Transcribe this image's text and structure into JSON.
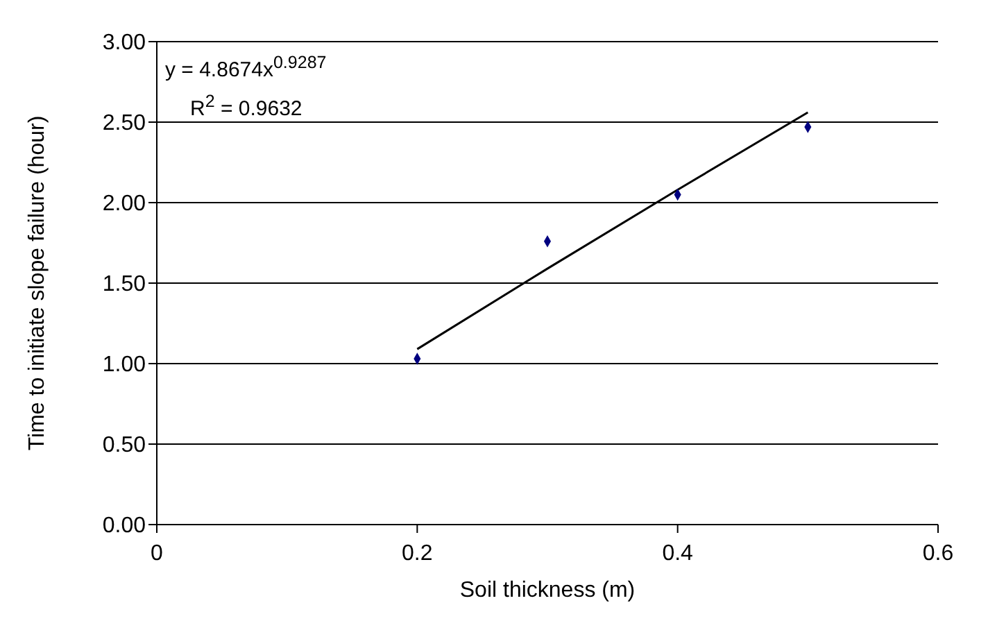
{
  "chart_data": {
    "type": "scatter",
    "xlabel": "Soil thickness (m)",
    "ylabel": "Time to initiate slope failure (hour)",
    "annotations": [
      "y = 4.8674x$^{0.9287}$",
      "R$^{2}$ = 0.9632"
    ],
    "xlim": [
      0,
      0.6
    ],
    "xticks": [
      0,
      0.2,
      0.4,
      0.6
    ],
    "ylim": [
      0,
      3
    ],
    "yticks": [
      {
        "value": 0,
        "label": "0.00"
      },
      {
        "value": 0.5,
        "label": "0.50"
      },
      {
        "value": 1,
        "label": "1.00"
      },
      {
        "value": 1.5,
        "label": "1.50"
      },
      {
        "value": 2,
        "label": "2.00"
      },
      {
        "value": 2.5,
        "label": "2.50"
      },
      {
        "value": 3,
        "label": "3.00"
      }
    ],
    "grid": "y",
    "marker": "diamond",
    "series": [
      {
        "color": "#000080",
        "x": [
          0.2,
          0.3,
          0.4,
          0.5
        ],
        "values": [
          1.03,
          1.76,
          2.05,
          2.47
        ]
      },
      {
        "type": "line",
        "color": "#000000",
        "marker": "none",
        "line_style": "solid",
        "x": [
          0.2,
          0.3,
          0.4,
          0.5
        ],
        "values": [
          1.09,
          1.59,
          2.08,
          2.56
        ]
      }
    ]
  }
}
